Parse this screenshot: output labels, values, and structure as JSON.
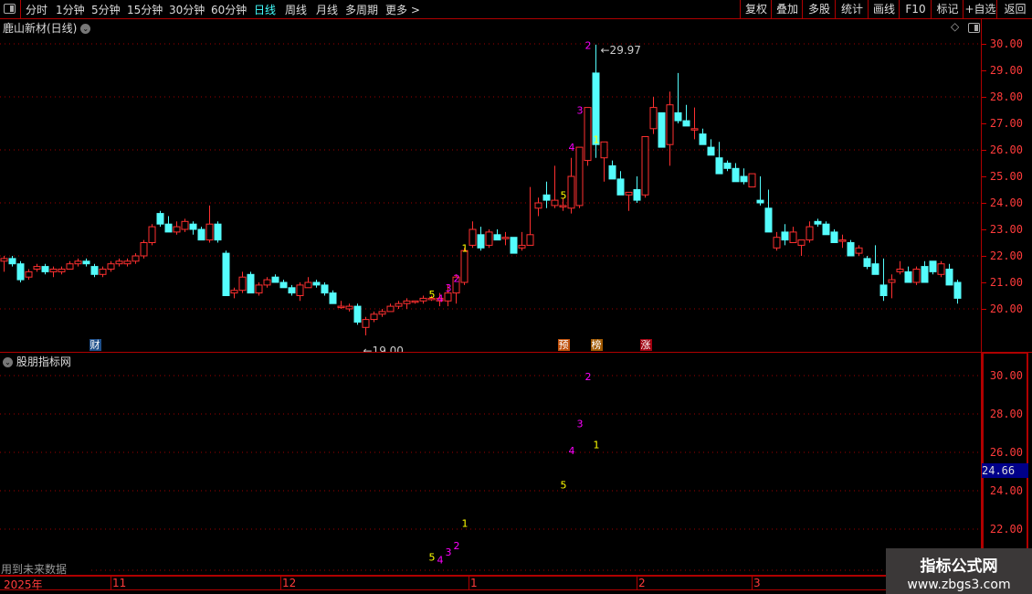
{
  "toolbar": {
    "periods": [
      "分时",
      "1分钟",
      "5分钟",
      "15分钟",
      "30分钟",
      "60分钟",
      "日线",
      "周线",
      "月线",
      "多周期",
      "更多 >"
    ],
    "active_period": "日线",
    "right_buttons": [
      "复权",
      "叠加",
      "多股",
      "统计",
      "画线",
      "F10",
      "标记",
      "+自选",
      "返回"
    ]
  },
  "main_panel": {
    "title": "鹿山新材(日线)",
    "high_label": "29.97",
    "low_label": "19.00",
    "y_ticks": [
      "30.00",
      "29.00",
      "28.00",
      "27.00",
      "26.00",
      "25.00",
      "24.00",
      "23.00",
      "22.00",
      "21.00",
      "20.00"
    ],
    "events": [
      {
        "label": "财",
        "index": 11,
        "color": "#1e4f8a"
      },
      {
        "label": "预",
        "index": 68,
        "color": "#c0500a"
      },
      {
        "label": "榜",
        "index": 72,
        "color": "#a05800"
      },
      {
        "label": "涨",
        "index": 78,
        "color": "#a00010"
      }
    ]
  },
  "indicator_panel": {
    "title": "股朋指标网",
    "y_ticks": [
      "30.00",
      "28.00",
      "26.00",
      "24.00",
      "22.00"
    ],
    "current_value": "24.66",
    "footer_note": "用到未来数据"
  },
  "time_axis": [
    "2025年",
    "11",
    "12",
    "1",
    "2",
    "3"
  ],
  "watermark": {
    "line1": "指标公式网",
    "line2": "www.zbgs3.com"
  },
  "colors": {
    "up": "#ff3030",
    "down": "#54fcfc",
    "grid": "#a00000",
    "yellow": "#ffff00",
    "magenta": "#ff00ff"
  },
  "chart_data": {
    "type": "candlestick",
    "ylim": [
      19,
      30.5
    ],
    "ohlc": [
      [
        21.8,
        22.0,
        21.4,
        21.9
      ],
      [
        21.9,
        22.0,
        21.6,
        21.7
      ],
      [
        21.7,
        21.8,
        21.0,
        21.1
      ],
      [
        21.2,
        21.5,
        21.1,
        21.4
      ],
      [
        21.5,
        21.7,
        21.4,
        21.6
      ],
      [
        21.6,
        21.7,
        21.3,
        21.4
      ],
      [
        21.4,
        21.6,
        21.2,
        21.5
      ],
      [
        21.4,
        21.6,
        21.3,
        21.5
      ],
      [
        21.5,
        21.8,
        21.5,
        21.7
      ],
      [
        21.7,
        21.9,
        21.6,
        21.8
      ],
      [
        21.8,
        21.9,
        21.6,
        21.7
      ],
      [
        21.6,
        21.7,
        21.2,
        21.3
      ],
      [
        21.3,
        21.6,
        21.2,
        21.5
      ],
      [
        21.5,
        21.8,
        21.4,
        21.7
      ],
      [
        21.7,
        21.9,
        21.6,
        21.8
      ],
      [
        21.7,
        21.9,
        21.6,
        21.8
      ],
      [
        21.8,
        22.1,
        21.7,
        22.0
      ],
      [
        22.0,
        22.6,
        21.9,
        22.5
      ],
      [
        22.5,
        23.2,
        22.4,
        23.1
      ],
      [
        23.6,
        23.7,
        23.1,
        23.2
      ],
      [
        23.2,
        23.5,
        22.9,
        22.9
      ],
      [
        22.9,
        23.3,
        22.8,
        23.1
      ],
      [
        23.0,
        23.4,
        22.9,
        23.3
      ],
      [
        23.2,
        23.3,
        22.8,
        23.0
      ],
      [
        23.0,
        23.1,
        22.6,
        22.6
      ],
      [
        22.6,
        23.9,
        22.5,
        23.2
      ],
      [
        23.2,
        23.3,
        22.5,
        22.6
      ],
      [
        22.1,
        22.2,
        20.5,
        20.5
      ],
      [
        20.6,
        20.8,
        20.4,
        20.7
      ],
      [
        20.7,
        21.4,
        20.6,
        21.2
      ],
      [
        21.3,
        21.4,
        20.6,
        20.6
      ],
      [
        20.6,
        21.0,
        20.5,
        20.9
      ],
      [
        20.9,
        21.2,
        20.8,
        21.1
      ],
      [
        21.2,
        21.3,
        21.0,
        21.0
      ],
      [
        21.0,
        21.1,
        20.8,
        20.8
      ],
      [
        20.8,
        20.9,
        20.5,
        20.6
      ],
      [
        20.5,
        21.0,
        20.3,
        20.9
      ],
      [
        20.8,
        21.2,
        20.8,
        21.0
      ],
      [
        21.0,
        21.1,
        20.8,
        20.9
      ],
      [
        20.9,
        21.0,
        20.5,
        20.6
      ],
      [
        20.6,
        20.7,
        20.2,
        20.2
      ],
      [
        20.1,
        20.3,
        20.0,
        20.1
      ],
      [
        20.0,
        20.2,
        19.9,
        20.1
      ],
      [
        20.1,
        20.2,
        19.4,
        19.5
      ],
      [
        19.3,
        19.7,
        19.0,
        19.6
      ],
      [
        19.6,
        19.9,
        19.5,
        19.8
      ],
      [
        19.8,
        20.0,
        19.7,
        19.9
      ],
      [
        19.9,
        20.2,
        19.9,
        20.1
      ],
      [
        20.1,
        20.3,
        20.0,
        20.2
      ],
      [
        20.2,
        20.4,
        20.0,
        20.3
      ],
      [
        20.3,
        20.3,
        20.2,
        20.3
      ],
      [
        20.3,
        20.5,
        20.2,
        20.4
      ],
      [
        20.4,
        20.5,
        20.3,
        20.4
      ],
      [
        20.3,
        20.6,
        20.1,
        20.4
      ],
      [
        20.3,
        20.9,
        20.1,
        20.6
      ],
      [
        20.6,
        21.3,
        20.2,
        21.2
      ],
      [
        21.0,
        22.3,
        20.9,
        22.2
      ],
      [
        22.4,
        23.3,
        22.3,
        23.0
      ],
      [
        22.8,
        23.1,
        22.2,
        22.3
      ],
      [
        22.4,
        23.0,
        22.3,
        22.9
      ],
      [
        22.8,
        23.0,
        22.6,
        22.6
      ],
      [
        22.7,
        22.9,
        22.4,
        22.7
      ],
      [
        22.7,
        22.7,
        22.1,
        22.1
      ],
      [
        22.3,
        22.9,
        22.2,
        22.4
      ],
      [
        22.4,
        24.6,
        22.4,
        22.8
      ],
      [
        23.8,
        24.2,
        23.5,
        24.0
      ],
      [
        24.3,
        24.8,
        23.8,
        24.1
      ],
      [
        23.9,
        25.4,
        23.8,
        24.1
      ],
      [
        23.9,
        24.2,
        23.7,
        23.9
      ],
      [
        23.8,
        25.7,
        23.6,
        25.0
      ],
      [
        23.9,
        26.1,
        23.8,
        26.1
      ],
      [
        25.6,
        27.6,
        25.4,
        27.6
      ],
      [
        28.9,
        29.97,
        25.7,
        26.2
      ],
      [
        25.7,
        26.3,
        24.8,
        26.3
      ],
      [
        25.4,
        25.6,
        24.9,
        24.9
      ],
      [
        24.9,
        25.2,
        24.3,
        24.3
      ],
      [
        24.3,
        24.4,
        23.7,
        24.4
      ],
      [
        24.5,
        25.0,
        24.0,
        24.1
      ],
      [
        24.3,
        26.5,
        24.2,
        26.5
      ],
      [
        26.8,
        28.0,
        26.6,
        27.6
      ],
      [
        27.4,
        27.4,
        26.1,
        26.1
      ],
      [
        26.2,
        28.2,
        25.4,
        27.7
      ],
      [
        27.4,
        28.9,
        27.0,
        27.1
      ],
      [
        27.1,
        27.7,
        26.9,
        26.9
      ],
      [
        26.8,
        27.6,
        26.4,
        26.8
      ],
      [
        26.6,
        26.8,
        26.2,
        26.2
      ],
      [
        26.1,
        26.4,
        25.8,
        25.8
      ],
      [
        25.7,
        26.3,
        25.1,
        25.1
      ],
      [
        25.5,
        25.6,
        25.2,
        25.3
      ],
      [
        25.3,
        25.5,
        24.8,
        24.8
      ],
      [
        25.0,
        25.3,
        24.7,
        24.8
      ],
      [
        24.6,
        25.1,
        24.6,
        25.1
      ],
      [
        24.1,
        25.0,
        23.9,
        24.0
      ],
      [
        23.8,
        24.5,
        22.9,
        22.9
      ],
      [
        22.3,
        22.9,
        22.2,
        22.7
      ],
      [
        22.9,
        23.2,
        22.4,
        22.6
      ],
      [
        22.5,
        23.1,
        22.5,
        22.9
      ],
      [
        22.4,
        22.6,
        22.0,
        22.6
      ],
      [
        22.6,
        23.3,
        22.5,
        23.1
      ],
      [
        23.3,
        23.4,
        23.1,
        23.2
      ],
      [
        23.2,
        23.3,
        22.8,
        22.8
      ],
      [
        22.9,
        23.0,
        22.5,
        22.5
      ],
      [
        22.6,
        22.8,
        22.3,
        22.6
      ],
      [
        22.5,
        22.6,
        22.0,
        22.0
      ],
      [
        22.1,
        22.4,
        22.0,
        22.3
      ],
      [
        21.9,
        22.0,
        21.5,
        21.6
      ],
      [
        21.7,
        22.4,
        21.3,
        21.3
      ],
      [
        20.9,
        21.9,
        20.3,
        20.5
      ],
      [
        21.0,
        21.3,
        20.4,
        21.1
      ],
      [
        21.4,
        21.8,
        21.3,
        21.5
      ],
      [
        21.4,
        21.6,
        21.0,
        21.0
      ],
      [
        21.0,
        21.6,
        20.9,
        21.5
      ],
      [
        21.6,
        21.8,
        21.0,
        21.0
      ],
      [
        21.8,
        21.8,
        21.3,
        21.4
      ],
      [
        21.3,
        21.8,
        21.2,
        21.7
      ],
      [
        21.5,
        21.7,
        21.0,
        20.9
      ],
      [
        21.0,
        21.1,
        20.2,
        20.4
      ]
    ],
    "signals": [
      {
        "index": 52,
        "label": "5",
        "value": 20.55,
        "color": "yellow"
      },
      {
        "index": 53,
        "label": "4",
        "value": 20.4,
        "color": "magenta"
      },
      {
        "index": 54,
        "label": "3",
        "value": 20.8,
        "color": "magenta"
      },
      {
        "index": 55,
        "label": "2",
        "value": 21.15,
        "color": "magenta"
      },
      {
        "index": 56,
        "label": "1",
        "value": 22.3,
        "color": "yellow"
      },
      {
        "index": 68,
        "label": "5",
        "value": 24.3,
        "color": "yellow"
      },
      {
        "index": 69,
        "label": "4",
        "value": 26.1,
        "color": "magenta"
      },
      {
        "index": 70,
        "label": "3",
        "value": 27.5,
        "color": "magenta"
      },
      {
        "index": 71,
        "label": "2",
        "value": 29.95,
        "color": "magenta"
      },
      {
        "index": 72,
        "label": "1",
        "value": 26.4,
        "color": "yellow"
      }
    ]
  }
}
